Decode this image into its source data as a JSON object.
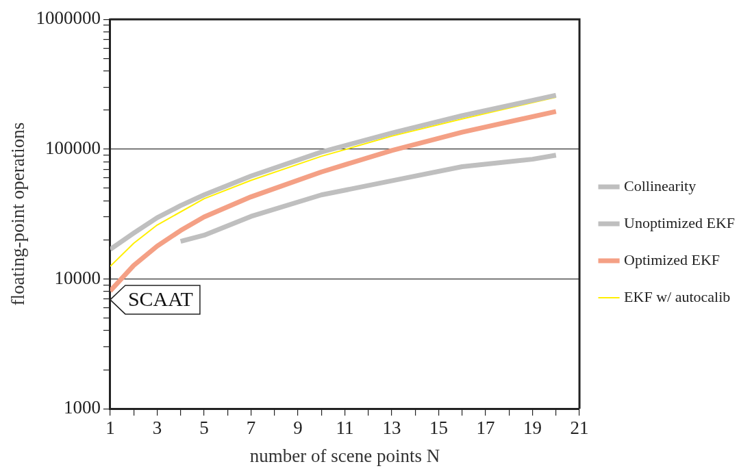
{
  "chart_data": {
    "type": "line",
    "xlabel": "number of scene points N",
    "ylabel": "floating-point operations",
    "log": "y",
    "grid": "y",
    "legend": "right",
    "marker": "none",
    "line_style": "solid",
    "xlim": [
      1,
      21
    ],
    "xticks": [
      1,
      {
        "value": 2,
        "label": null
      },
      3,
      {
        "value": 4,
        "label": null
      },
      5,
      {
        "value": 6,
        "label": null
      },
      7,
      {
        "value": 8,
        "label": null
      },
      9,
      {
        "value": 10,
        "label": null
      },
      11,
      {
        "value": 12,
        "label": null
      },
      13,
      {
        "value": 14,
        "label": null
      },
      15,
      {
        "value": 16,
        "label": null
      },
      17,
      {
        "value": 18,
        "label": null
      },
      19,
      {
        "value": 20,
        "label": null
      },
      21
    ],
    "ylim": [
      1000,
      1000000
    ],
    "yticks": [
      1000,
      {
        "value": 2000,
        "label": null
      },
      {
        "value": 3000,
        "label": null
      },
      {
        "value": 4000,
        "label": null
      },
      {
        "value": 5000,
        "label": null
      },
      {
        "value": 6000,
        "label": null
      },
      {
        "value": 7000,
        "label": null
      },
      {
        "value": 8000,
        "label": null
      },
      {
        "value": 9000,
        "label": null
      },
      10000,
      {
        "value": 20000,
        "label": null
      },
      {
        "value": 30000,
        "label": null
      },
      {
        "value": 40000,
        "label": null
      },
      {
        "value": 50000,
        "label": null
      },
      {
        "value": 60000,
        "label": null
      },
      {
        "value": 70000,
        "label": null
      },
      {
        "value": 80000,
        "label": null
      },
      {
        "value": 90000,
        "label": null
      },
      100000,
      {
        "value": 200000,
        "label": null
      },
      {
        "value": 300000,
        "label": null
      },
      {
        "value": 400000,
        "label": null
      },
      {
        "value": 500000,
        "label": null
      },
      {
        "value": 600000,
        "label": null
      },
      {
        "value": 700000,
        "label": null
      },
      {
        "value": 800000,
        "label": null
      },
      {
        "value": 900000,
        "label": null
      },
      1000000
    ],
    "series": [
      {
        "name": "Collinearity",
        "color": "#bfbfbf",
        "x": [
          4,
          5,
          7,
          10,
          13,
          16,
          19,
          20
        ],
        "values": [
          19500,
          21700,
          30300,
          44400,
          57000,
          73300,
          83600,
          89800
        ]
      },
      {
        "name": "Unoptimized EKF",
        "color": "#bfbfbf",
        "x": [
          1,
          2,
          3,
          4,
          5,
          7,
          10,
          13,
          16,
          20
        ],
        "values": [
          16900,
          22500,
          29600,
          36700,
          44400,
          62000,
          95000,
          133000,
          181000,
          260000
        ]
      },
      {
        "name": "Optimized EKF",
        "color": "#f4a085",
        "x": [
          1,
          2,
          3,
          4,
          5,
          7,
          10,
          13,
          16,
          20
        ],
        "values": [
          8070,
          12700,
          17900,
          23600,
          30000,
          42900,
          66700,
          97700,
          135000,
          195000
        ]
      },
      {
        "name": "EKF w/ autocalib",
        "color": "#ffef00",
        "x": [
          1,
          2,
          3,
          5,
          7,
          10,
          13,
          16,
          20
        ],
        "values": [
          12500,
          18800,
          26000,
          41500,
          57500,
          88000,
          126000,
          171000,
          251000
        ]
      }
    ],
    "annotations": [
      "SCAAT"
    ]
  }
}
